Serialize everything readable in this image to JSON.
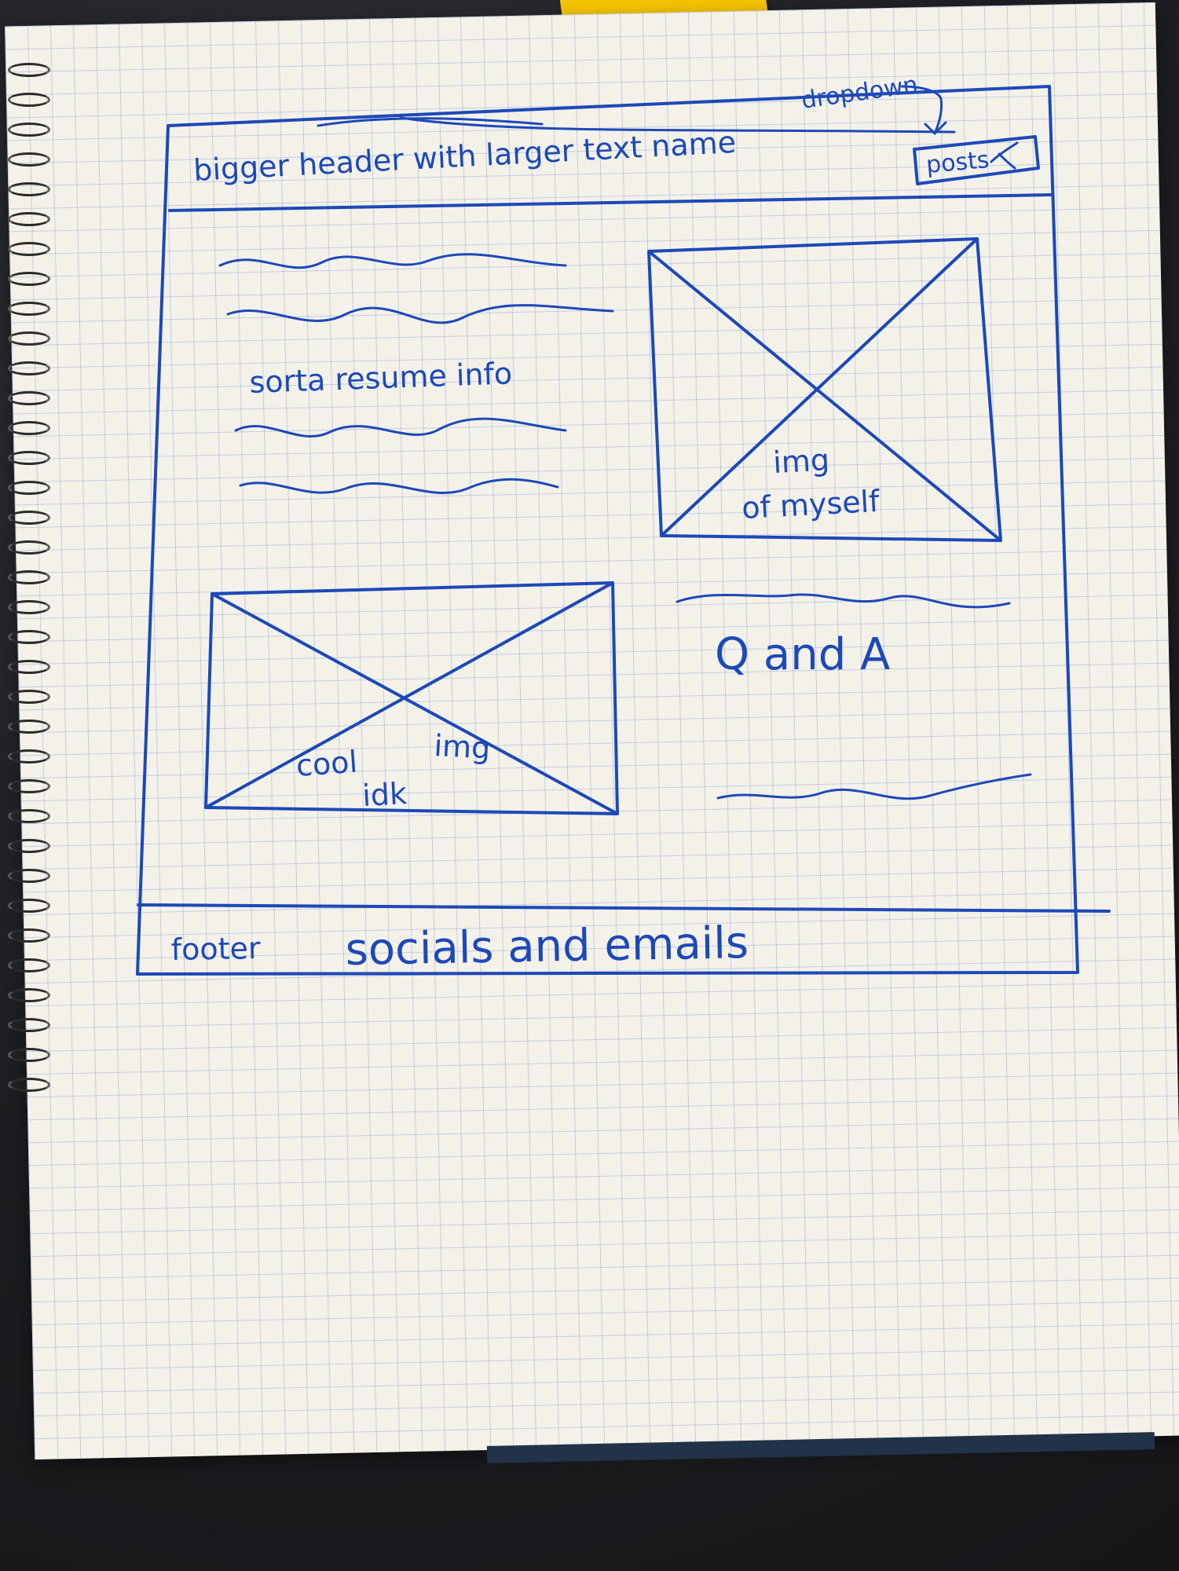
{
  "header_text": "bigger header with larger text name",
  "dropdown_note": "dropdown",
  "dropdown_label": "posts",
  "resume_text": "sorta resume info",
  "portrait_label_top": "img",
  "portrait_label_bottom": "of myself",
  "cool_img_label_top": "cool",
  "cool_img_label_bottom": "idk",
  "cool_img_label_right": "img",
  "qa_label": "Q and A",
  "footer_label": "footer",
  "footer_text": "socials and emails"
}
